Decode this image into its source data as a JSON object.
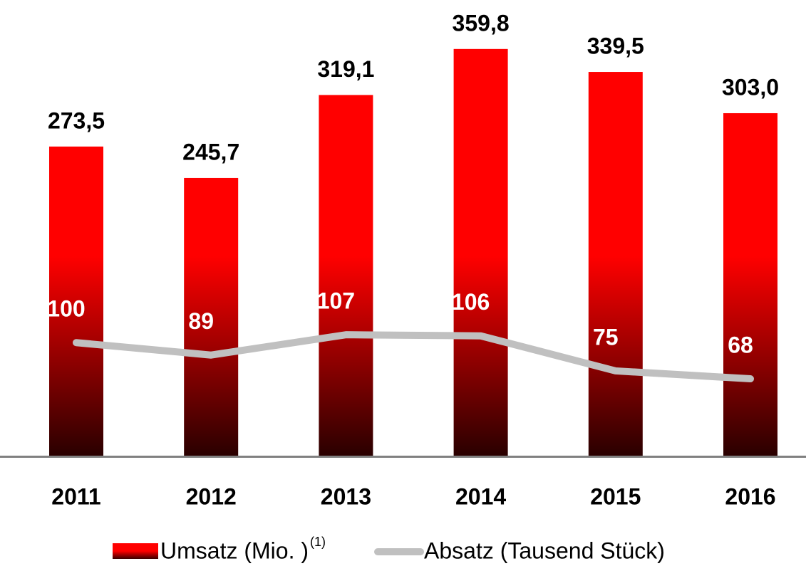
{
  "chart_data": {
    "type": "bar",
    "categories": [
      "2011",
      "2012",
      "2013",
      "2014",
      "2015",
      "2016"
    ],
    "series": [
      {
        "name": "Umsatz (Mio. )",
        "color": "#ff0000",
        "values": [
          273.5,
          245.7,
          319.1,
          359.8,
          339.5,
          303.0
        ],
        "value_labels": [
          "273,5",
          "245,7",
          "319,1",
          "359,8",
          "339,5",
          "303,0"
        ]
      },
      {
        "name": "Absatz (Tausend Stück)",
        "type": "line",
        "axis": "y2",
        "color": "#c0c0c0",
        "values": [
          100,
          89,
          107,
          106,
          75,
          68
        ]
      }
    ],
    "legend_superscript": "(1)",
    "ylim": [
      0,
      400
    ],
    "y2lim": [
      0,
      400
    ],
    "legend": "bottom"
  }
}
